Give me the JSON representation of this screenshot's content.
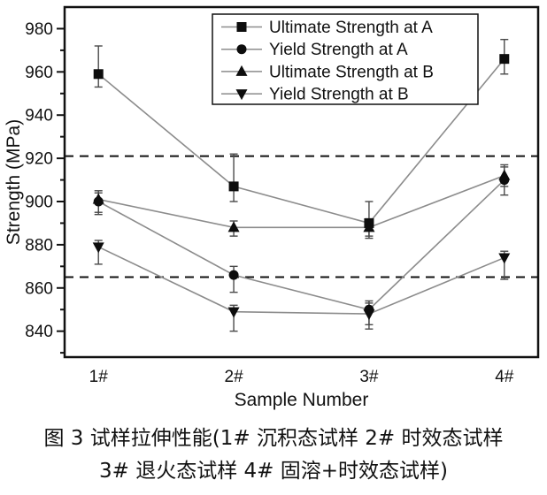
{
  "figure": {
    "caption_line1": "图 3  试样拉伸性能(1# 沉积态试样 2# 时效态试样",
    "caption_line2": "3# 退火态试样 4# 固溶+时效态试样)"
  },
  "chart_data": {
    "type": "line",
    "title": "",
    "xlabel": "Sample Number",
    "ylabel": "Strength (MPa)",
    "x": [
      1,
      2,
      3,
      4
    ],
    "x_tick_labels": [
      "1#",
      "2#",
      "3#",
      "4#"
    ],
    "xlim": [
      0.75,
      4.25
    ],
    "ylim": [
      828,
      990
    ],
    "y_major_ticks": [
      840,
      860,
      880,
      900,
      920,
      940,
      960,
      980
    ],
    "y_minor_ticks": [
      830,
      850,
      870,
      890,
      910,
      930,
      950,
      970
    ],
    "grid": "off",
    "legend_position": "top-center-inside",
    "reference_lines": [
      {
        "y": 921,
        "style": "dashed"
      },
      {
        "y": 865,
        "style": "dashed"
      }
    ],
    "series": [
      {
        "name": "Ultimate Strength at A",
        "marker": "square",
        "values": [
          959,
          907,
          890,
          966
        ],
        "err_hi": [
          972,
          922,
          900,
          975
        ],
        "err_lo": [
          953,
          900,
          883,
          959
        ]
      },
      {
        "name": "Yield Strength at A",
        "marker": "circle",
        "values": [
          900,
          866,
          850,
          910
        ],
        "err_hi": [
          904,
          870,
          854,
          917
        ],
        "err_lo": [
          894,
          858,
          843,
          903
        ]
      },
      {
        "name": "Ultimate Strength at B",
        "marker": "triangle-up",
        "values": [
          901,
          888,
          888,
          912
        ],
        "err_hi": [
          905,
          891,
          892,
          916
        ],
        "err_lo": [
          895,
          884,
          884,
          907
        ]
      },
      {
        "name": "Yield Strength at B",
        "marker": "triangle-down",
        "values": [
          879,
          849,
          848,
          874
        ],
        "err_hi": [
          882,
          852,
          853,
          877
        ],
        "err_lo": [
          871,
          840,
          841,
          864
        ]
      }
    ],
    "colors": {
      "marker": "#0d0d0d",
      "line": "#8c8c8c",
      "error": "#4a4a4a",
      "axis": "#111111",
      "dashed": "#111111",
      "background": "#ffffff"
    }
  }
}
